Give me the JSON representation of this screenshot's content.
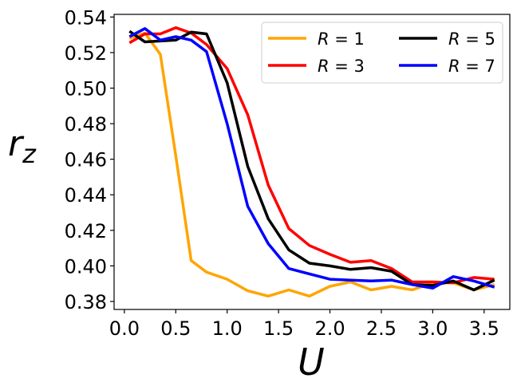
{
  "chart_data": {
    "type": "line",
    "title": "",
    "xlabel": "U",
    "ylabel": "r_z",
    "xlim": [
      -0.1,
      3.75
    ],
    "ylim": [
      0.3755,
      0.5415
    ],
    "xticks": [
      0.0,
      0.5,
      1.0,
      1.5,
      2.0,
      2.5,
      3.0,
      3.5
    ],
    "xtick_labels": [
      "0.0",
      "0.5",
      "1.0",
      "1.5",
      "2.0",
      "2.5",
      "3.0",
      "3.5"
    ],
    "yticks": [
      0.38,
      0.4,
      0.42,
      0.44,
      0.46,
      0.48,
      0.5,
      0.52,
      0.54
    ],
    "ytick_labels": [
      "0.38",
      "0.40",
      "0.42",
      "0.44",
      "0.46",
      "0.48",
      "0.50",
      "0.52",
      "0.54"
    ],
    "legend": {
      "position": "top-right",
      "columns": 2
    },
    "x": [
      0.05,
      0.2,
      0.35,
      0.5,
      0.65,
      0.8,
      1.0,
      1.2,
      1.4,
      1.6,
      1.8,
      2.0,
      2.2,
      2.4,
      2.6,
      2.8,
      3.0,
      3.2,
      3.4,
      3.6
    ],
    "series": [
      {
        "name": "R = 1",
        "var": "R",
        "value": "1",
        "color": "#ffa500",
        "values": [
          0.528,
          0.531,
          0.519,
          0.462,
          0.403,
          0.3965,
          0.3925,
          0.386,
          0.383,
          0.3865,
          0.383,
          0.3885,
          0.391,
          0.3865,
          0.3885,
          0.3865,
          0.3905,
          0.3905,
          0.3865,
          0.3895
        ]
      },
      {
        "name": "R = 3",
        "var": "R",
        "value": "3",
        "color": "#ff0000",
        "values": [
          0.5255,
          0.5305,
          0.5305,
          0.534,
          0.531,
          0.5245,
          0.511,
          0.485,
          0.4455,
          0.421,
          0.4115,
          0.4065,
          0.402,
          0.403,
          0.3985,
          0.391,
          0.391,
          0.3905,
          0.3935,
          0.3925
        ]
      },
      {
        "name": "R = 5",
        "var": "R",
        "value": "5",
        "color": "#000000",
        "values": [
          0.532,
          0.526,
          0.5265,
          0.527,
          0.5315,
          0.5305,
          0.503,
          0.456,
          0.4265,
          0.409,
          0.4015,
          0.4,
          0.398,
          0.399,
          0.397,
          0.3895,
          0.389,
          0.3915,
          0.3865,
          0.392
        ]
      },
      {
        "name": "R = 7",
        "var": "R",
        "value": "7",
        "color": "#0000ff",
        "values": [
          0.529,
          0.5335,
          0.527,
          0.529,
          0.527,
          0.5205,
          0.48,
          0.4335,
          0.4125,
          0.3985,
          0.3955,
          0.3925,
          0.392,
          0.3915,
          0.392,
          0.3895,
          0.3875,
          0.394,
          0.3915,
          0.388
        ]
      }
    ]
  }
}
